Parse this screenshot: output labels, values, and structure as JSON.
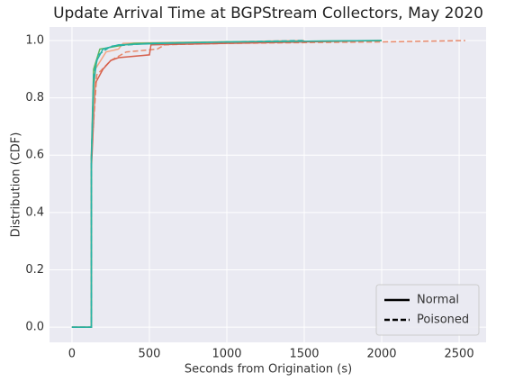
{
  "chart_data": {
    "type": "line",
    "title": "Update Arrival Time at BGPStream Collectors, May 2020",
    "x_label": "Seconds from Origination (s)",
    "y_label": "Distribution (CDF)",
    "xlim": [
      -145,
      2674
    ],
    "ylim": [
      -0.053,
      1.047
    ],
    "xticks": [
      0,
      500,
      1000,
      1500,
      2000,
      2500
    ],
    "yticks": [
      {
        "value": 0,
        "label": "0.0"
      },
      {
        "value": 0.2,
        "label": "0.2"
      },
      {
        "value": 0.4,
        "label": "0.4"
      },
      {
        "value": 0.6,
        "label": "0.6"
      },
      {
        "value": 0.8,
        "label": "0.8"
      },
      {
        "value": 1,
        "label": "1.0"
      }
    ],
    "grid": true,
    "legend_position": "lower right",
    "legend": [
      {
        "label": "Normal",
        "dash": "solid"
      },
      {
        "label": "Poisoned",
        "dash": "dashed"
      }
    ],
    "series": [
      {
        "color": "#e8896a",
        "dash": "dashed",
        "x": [
          0,
          125,
          125,
          160,
          250,
          350,
          550,
          600,
          1000,
          2000,
          2540
        ],
        "values": [
          0,
          0,
          0.6,
          0.88,
          0.93,
          0.96,
          0.97,
          0.985,
          0.99,
          0.995,
          1.0
        ]
      },
      {
        "color": "#d6604d",
        "dash": "solid",
        "x": [
          0,
          125,
          125,
          150,
          200,
          250,
          300,
          500,
          510,
          1000,
          2000
        ],
        "values": [
          0,
          0,
          0.55,
          0.85,
          0.9,
          0.93,
          0.94,
          0.95,
          0.985,
          0.99,
          1.0
        ]
      },
      {
        "color": "#f4a582",
        "dash": "solid",
        "x": [
          0,
          125,
          125,
          150,
          220,
          300,
          330,
          600,
          1500
        ],
        "values": [
          0,
          0,
          0.6,
          0.9,
          0.96,
          0.97,
          0.99,
          0.993,
          1.0
        ]
      },
      {
        "color": "#5cb85c",
        "dash": "solid",
        "x": [
          0,
          125,
          125,
          140,
          180,
          400,
          1000,
          2000
        ],
        "values": [
          0,
          0,
          0.6,
          0.9,
          0.97,
          0.99,
          0.995,
          1.0
        ]
      },
      {
        "color": "#2ab0a0",
        "dash": "dashed",
        "x": [
          0,
          125,
          125,
          140,
          170,
          250,
          500,
          1500
        ],
        "values": [
          0,
          0,
          0.58,
          0.88,
          0.95,
          0.98,
          0.99,
          1.0
        ]
      },
      {
        "color": "#26b3a5",
        "dash": "solid",
        "x": [
          0,
          125,
          125,
          140,
          160,
          200,
          300,
          600,
          1000,
          2000
        ],
        "values": [
          0,
          0,
          0.58,
          0.85,
          0.93,
          0.97,
          0.985,
          0.99,
          0.995,
          1.0
        ]
      }
    ]
  }
}
